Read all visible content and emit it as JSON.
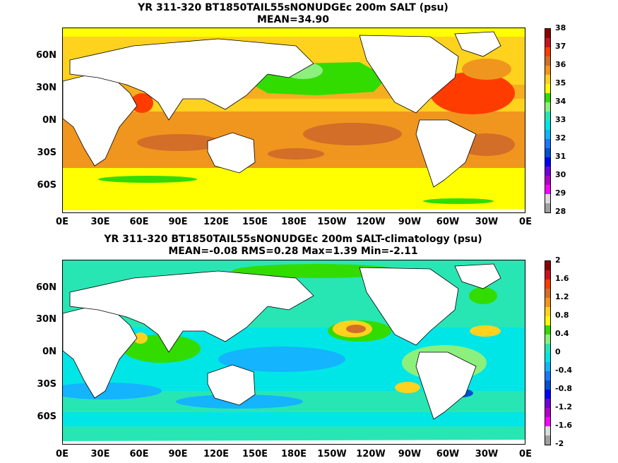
{
  "panels": [
    {
      "title": "YR 311-320 BT1850TAIL55sNONUDGEc 200m SALT (psu)",
      "subtitle": "MEAN=34.90",
      "lat_labels": [
        "60N",
        "30N",
        "0N",
        "30S",
        "60S"
      ],
      "lon_labels": [
        "0E",
        "30E",
        "60E",
        "90E",
        "120E",
        "150E",
        "180E",
        "150W",
        "120W",
        "90W",
        "60W",
        "30W",
        "0E"
      ],
      "colorbar": {
        "labels": [
          "38",
          "37",
          "36",
          "35",
          "34",
          "33",
          "32",
          "31",
          "30",
          "29",
          "28"
        ],
        "colors": [
          "#8b0000",
          "#c8141e",
          "#ff3c00",
          "#d26e28",
          "#f0961e",
          "#ffd21e",
          "#ffff00",
          "#32dc00",
          "#8cf07d",
          "#28e6b4",
          "#00e6e6",
          "#14b4ff",
          "#1e78ff",
          "#0050d2",
          "#0000ff",
          "#6e00dc",
          "#b400c8",
          "#ff00ff",
          "#dcdcdc",
          "#a0a0a0"
        ]
      }
    },
    {
      "title": "YR 311-320 BT1850TAIL55sNONUDGEc 200m SALT-climatology (psu)",
      "subtitle": "MEAN=-0.08   RMS=0.28   Max=1.39   Min=-2.11",
      "lat_labels": [
        "60N",
        "30N",
        "0N",
        "30S",
        "60S"
      ],
      "lon_labels": [
        "0E",
        "30E",
        "60E",
        "90E",
        "120E",
        "150E",
        "180E",
        "150W",
        "120W",
        "90W",
        "60W",
        "30W",
        "0E"
      ],
      "colorbar": {
        "labels": [
          "2",
          "1.6",
          "1.2",
          "0.8",
          "0.4",
          "0",
          "-0.4",
          "-0.8",
          "-1.2",
          "-1.6",
          "-2"
        ],
        "colors": [
          "#8b0000",
          "#c8141e",
          "#ff3c00",
          "#d26e28",
          "#f0961e",
          "#ffd21e",
          "#ffff00",
          "#32dc00",
          "#8cf07d",
          "#28e6b4",
          "#00e6e6",
          "#14b4ff",
          "#1e78ff",
          "#0050d2",
          "#0000ff",
          "#6e00dc",
          "#b400c8",
          "#ff00ff",
          "#dcdcdc",
          "#a0a0a0"
        ]
      }
    }
  ]
}
